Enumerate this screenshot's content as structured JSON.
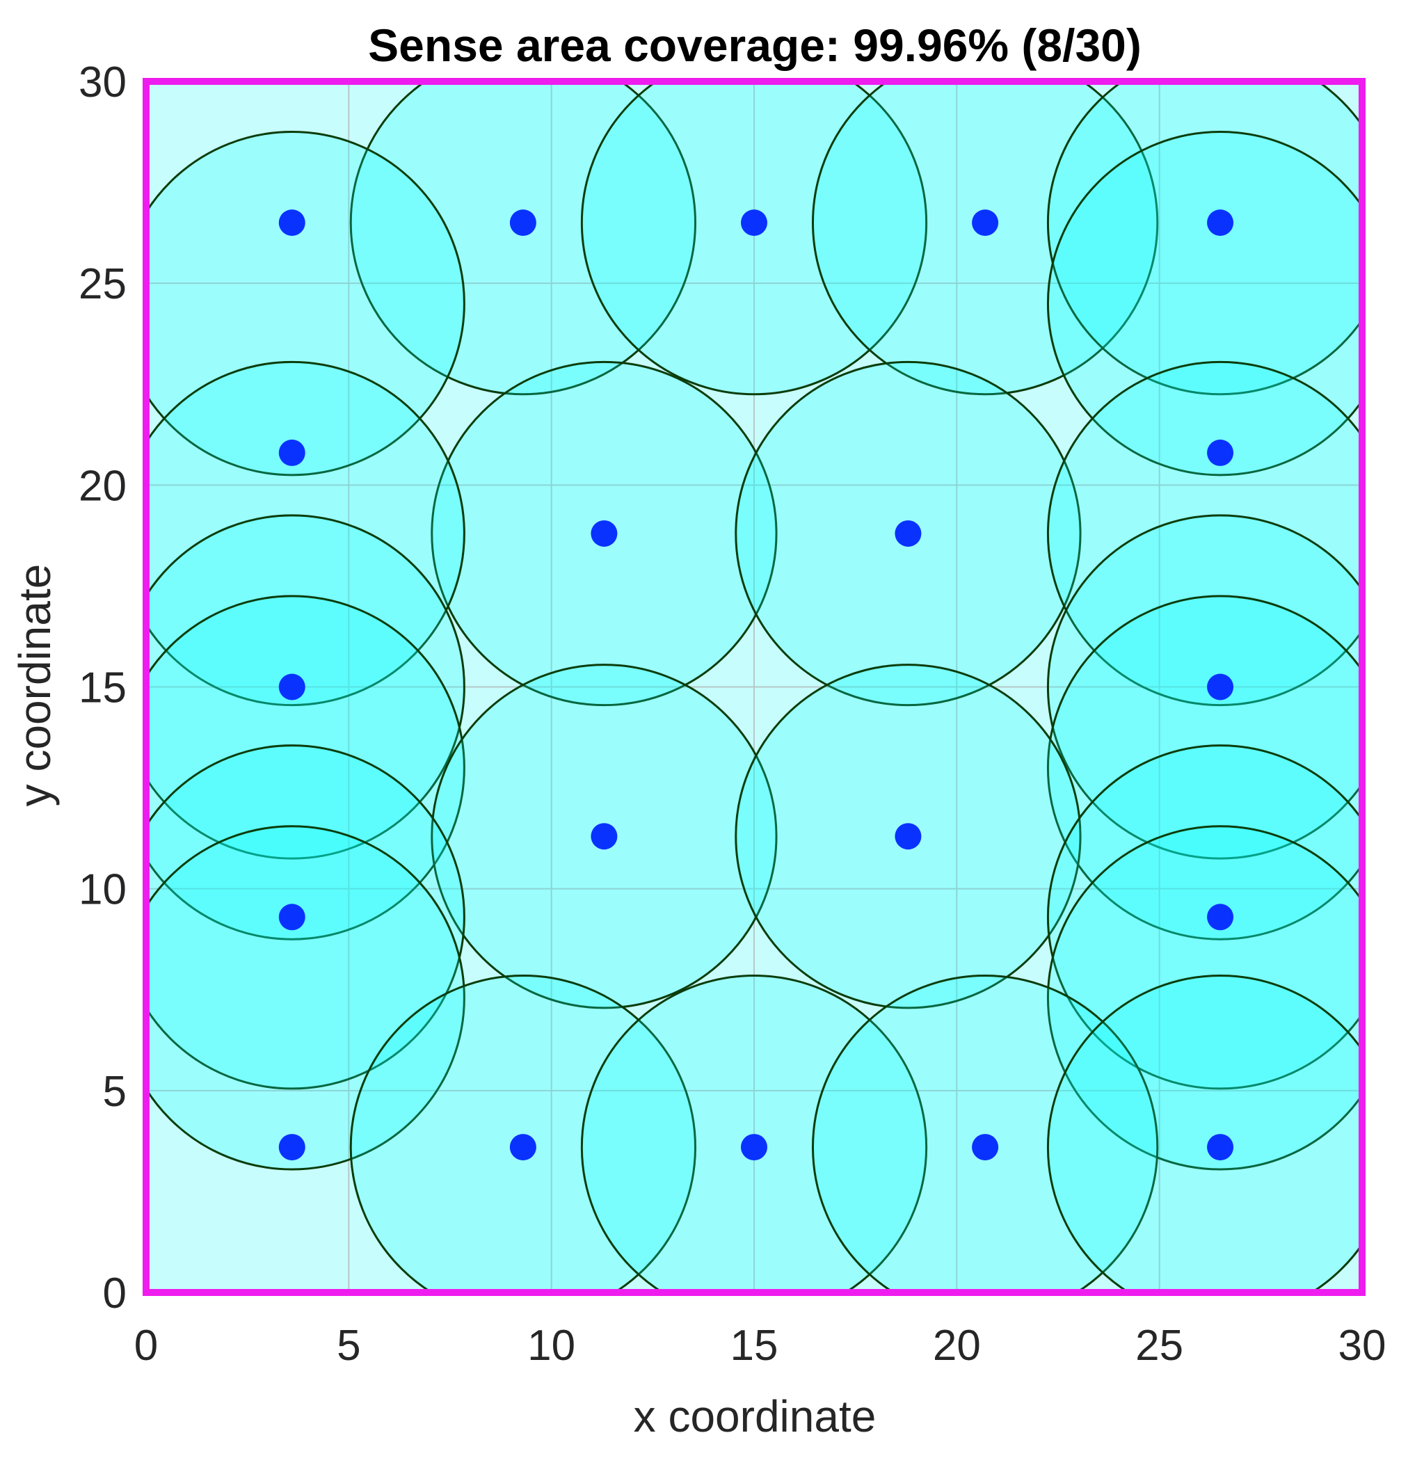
{
  "chart_data": {
    "type": "scatter",
    "title": "Sense area coverage: 99.96% (8/30)",
    "xlabel": "x coordinate",
    "ylabel": "y coordinate",
    "xlim": [
      0,
      30
    ],
    "ylim": [
      0,
      30
    ],
    "xticks": [
      "0",
      "5",
      "10",
      "15",
      "20",
      "25",
      "30"
    ],
    "yticks": [
      "0",
      "5",
      "10",
      "15",
      "20",
      "25",
      "30"
    ],
    "grid": true,
    "sensing_radius": 4.25,
    "colors": {
      "area_fill": "#c8fdfd",
      "area_border": "#ee1cee",
      "circle_fill": "#00ffff",
      "circle_edge": "#0b3d0b",
      "node": "#0a32ff",
      "grid": "#b5c8c8"
    },
    "nodes": [
      {
        "x": 3.6,
        "y": 26.5
      },
      {
        "x": 9.3,
        "y": 26.5
      },
      {
        "x": 15.0,
        "y": 26.5
      },
      {
        "x": 20.7,
        "y": 26.5
      },
      {
        "x": 26.5,
        "y": 26.5
      },
      {
        "x": 3.6,
        "y": 20.8
      },
      {
        "x": 26.5,
        "y": 20.8
      },
      {
        "x": 11.3,
        "y": 18.8
      },
      {
        "x": 18.8,
        "y": 18.8
      },
      {
        "x": 3.6,
        "y": 15.0
      },
      {
        "x": 26.5,
        "y": 15.0
      },
      {
        "x": 11.3,
        "y": 11.3
      },
      {
        "x": 18.8,
        "y": 11.3
      },
      {
        "x": 3.6,
        "y": 9.3
      },
      {
        "x": 26.5,
        "y": 9.3
      },
      {
        "x": 3.6,
        "y": 3.6
      },
      {
        "x": 9.3,
        "y": 3.6
      },
      {
        "x": 15.0,
        "y": 3.6
      },
      {
        "x": 20.7,
        "y": 3.6
      },
      {
        "x": 26.5,
        "y": 3.6
      }
    ],
    "coverage_circles": [
      {
        "x": 9.3,
        "y": 26.5
      },
      {
        "x": 15.0,
        "y": 26.5
      },
      {
        "x": 20.7,
        "y": 26.5
      },
      {
        "x": 26.5,
        "y": 26.5
      },
      {
        "x": 3.6,
        "y": 24.5
      },
      {
        "x": 26.5,
        "y": 24.5
      },
      {
        "x": 11.3,
        "y": 18.8
      },
      {
        "x": 18.8,
        "y": 18.8
      },
      {
        "x": 3.6,
        "y": 18.8
      },
      {
        "x": 26.5,
        "y": 18.8
      },
      {
        "x": 3.6,
        "y": 15.0
      },
      {
        "x": 26.5,
        "y": 15.0
      },
      {
        "x": 3.6,
        "y": 13.0
      },
      {
        "x": 26.5,
        "y": 13.0
      },
      {
        "x": 11.3,
        "y": 11.3
      },
      {
        "x": 18.8,
        "y": 11.3
      },
      {
        "x": 3.6,
        "y": 9.3
      },
      {
        "x": 26.5,
        "y": 9.3
      },
      {
        "x": 3.6,
        "y": 7.3
      },
      {
        "x": 26.5,
        "y": 7.3
      },
      {
        "x": 9.3,
        "y": 3.6
      },
      {
        "x": 15.0,
        "y": 3.6
      },
      {
        "x": 20.7,
        "y": 3.6
      },
      {
        "x": 26.5,
        "y": 3.6
      }
    ]
  }
}
